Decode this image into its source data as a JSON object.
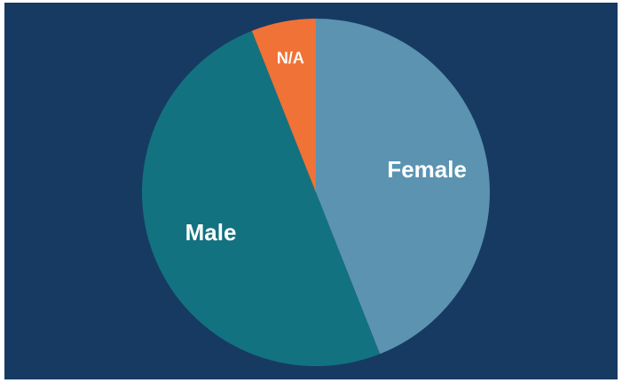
{
  "chart_data": {
    "type": "pie",
    "categories": [
      "Female",
      "Male",
      "N/A"
    ],
    "values": [
      44,
      50,
      6
    ],
    "colors": [
      "#5b93b0",
      "#13727f",
      "#f07236"
    ],
    "background": "#173a63"
  }
}
